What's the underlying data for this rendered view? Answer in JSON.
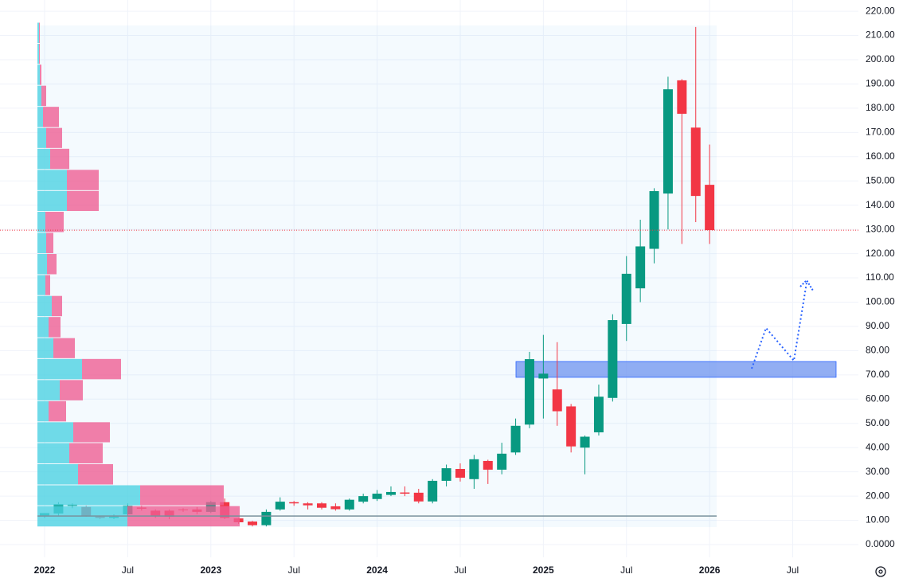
{
  "chart_data": {
    "type": "candlestick",
    "x": [
      0,
      1,
      2,
      3,
      4,
      5,
      6,
      7,
      8,
      9,
      10,
      11,
      12,
      13,
      14,
      15,
      16,
      17,
      18,
      19,
      20,
      21,
      22,
      23,
      24,
      25,
      26,
      27,
      28,
      29,
      30,
      31,
      32,
      33,
      34,
      35,
      36,
      37,
      38,
      39,
      40,
      41,
      42,
      43,
      44,
      45,
      46,
      47,
      48
    ],
    "open": [
      12,
      12.8,
      16,
      15.5,
      11.5,
      11,
      12.5,
      15.3,
      14,
      14,
      14.5,
      14.5,
      13.5,
      17.5,
      10.8,
      9.5,
      8,
      14.5,
      17.5,
      17,
      17,
      15.8,
      14.5,
      17.7,
      18.8,
      20.5,
      21.5,
      21.4,
      17.8,
      26.3,
      31.2,
      27,
      34.5,
      30.9,
      38,
      49.5,
      68.5,
      64,
      57,
      40,
      46.3,
      60.5,
      91,
      105.7,
      122,
      144.8,
      191.5,
      172,
      148.4
    ],
    "high": [
      13,
      17.5,
      17,
      16,
      12,
      12.5,
      17,
      16,
      14.5,
      14.5,
      15,
      15.5,
      18,
      19,
      11,
      9.8,
      14.5,
      19.5,
      18,
      17.5,
      17.5,
      17,
      19,
      21,
      22.5,
      24,
      24,
      23,
      27,
      33,
      33.5,
      37,
      35,
      42,
      52,
      79.5,
      86.5,
      83.5,
      58,
      45,
      66,
      95,
      119,
      134,
      147,
      193,
      192,
      213.5,
      165
    ],
    "low": [
      11,
      12,
      15,
      11.5,
      10.5,
      10.5,
      12,
      14,
      11,
      10.5,
      13.5,
      12.5,
      13,
      10.5,
      8.5,
      7.5,
      7.5,
      14,
      16,
      14.5,
      14.5,
      14,
      14,
      17,
      18,
      20,
      20,
      17,
      17,
      24,
      26,
      23,
      25,
      29,
      37,
      48,
      52,
      49,
      38,
      29,
      45,
      59,
      84,
      100,
      116,
      130,
      124,
      133,
      124
    ],
    "close": [
      13,
      16.7,
      16.5,
      12,
      11,
      11.5,
      16,
      14.8,
      12,
      11.5,
      14.2,
      13.5,
      17.5,
      11,
      9.2,
      8,
      13.5,
      17.7,
      17,
      16.2,
      15.2,
      14.6,
      18.5,
      20,
      21,
      21.7,
      21,
      17.8,
      26.3,
      31.5,
      27.6,
      35.2,
      30.9,
      37.5,
      49,
      76.5,
      70.5,
      55,
      40.5,
      44.5,
      61,
      92.6,
      111.7,
      123,
      145.8,
      187.8,
      177.7,
      143.8,
      129.7
    ],
    "up_color": "#089981",
    "down_color": "#f23645",
    "xlim": [
      -3.22,
      58.74
    ],
    "ylim": [
      -5.25,
      224.63
    ],
    "xticks": [
      {
        "value": 0,
        "label": "2022"
      },
      {
        "value": 6,
        "label": "Jul"
      },
      {
        "value": 12,
        "label": "2023"
      },
      {
        "value": 18,
        "label": "Jul"
      },
      {
        "value": 24,
        "label": "2024"
      },
      {
        "value": 30,
        "label": "Jul"
      },
      {
        "value": 36,
        "label": "2025"
      },
      {
        "value": 42,
        "label": "Jul"
      },
      {
        "value": 48,
        "label": "2026"
      },
      {
        "value": 54,
        "label": "Jul"
      }
    ],
    "yticks": [
      {
        "value": 0,
        "label": "0.0000"
      },
      {
        "value": 10,
        "label": "10.00"
      },
      {
        "value": 20,
        "label": "20.00"
      },
      {
        "value": 30,
        "label": "30.00"
      },
      {
        "value": 40,
        "label": "40.00"
      },
      {
        "value": 50,
        "label": "50.00"
      },
      {
        "value": 60,
        "label": "60.00"
      },
      {
        "value": 70,
        "label": "70.00"
      },
      {
        "value": 80,
        "label": "80.00"
      },
      {
        "value": 90,
        "label": "90.00"
      },
      {
        "value": 100,
        "label": "100.00"
      },
      {
        "value": 110,
        "label": "110.00"
      },
      {
        "value": 120,
        "label": "120.00"
      },
      {
        "value": 130,
        "label": "130.00"
      },
      {
        "value": 140,
        "label": "140.00"
      },
      {
        "value": 150,
        "label": "150.00"
      },
      {
        "value": 160,
        "label": "160.00"
      },
      {
        "value": 170,
        "label": "170.00"
      },
      {
        "value": 180,
        "label": "180.00"
      },
      {
        "value": 190,
        "label": "190.00"
      },
      {
        "value": 200,
        "label": "200.00"
      },
      {
        "value": 210,
        "label": "210.00"
      },
      {
        "value": 220,
        "label": "220.00"
      }
    ],
    "grid": true,
    "volume_profile": {
      "bins": [
        7.5,
        16.2,
        24.8,
        33.5,
        42.2,
        50.8,
        59.5,
        68.2,
        76.9,
        85.5,
        94.2,
        102.9,
        111.5,
        120.2,
        128.9,
        137.6,
        146.2,
        154.9,
        163.6,
        172.2,
        180.9,
        189.6,
        198.3,
        206.9,
        215.6
      ],
      "up": [
        113,
        129,
        51,
        40,
        45,
        14,
        28,
        56,
        20,
        14,
        18,
        10,
        12,
        11,
        10,
        37,
        37,
        16,
        11,
        7,
        5,
        3,
        2,
        2
      ],
      "down": [
        141,
        105,
        44,
        42,
        46,
        22,
        29,
        49,
        27,
        15,
        13,
        6,
        12,
        9,
        23,
        40,
        40,
        24,
        20,
        20,
        6,
        2,
        1,
        1
      ],
      "up_color": "#4dd2e2",
      "down_color": "#ef5f93"
    },
    "poc": 11.8,
    "zone": {
      "low": 69,
      "high": 75.5,
      "color": "#6d93ef"
    }
  }
}
